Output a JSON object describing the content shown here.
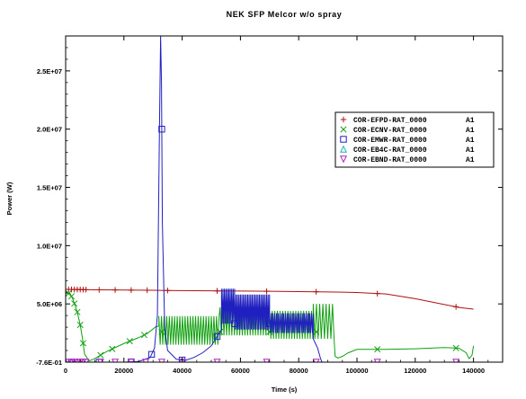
{
  "chart_data": {
    "type": "line",
    "title": "NEK SFP Melcor w/o spray",
    "xlabel": "Time (s)",
    "ylabel": "Power (W)",
    "xlim": [
      0,
      150000
    ],
    "ylim": [
      -0.76,
      28000000
    ],
    "x_ticks": [
      0,
      20000,
      40000,
      60000,
      80000,
      100000,
      120000,
      140000
    ],
    "x_tick_labels": [
      "0",
      "20000",
      "40000",
      "60000",
      "80000",
      "100000",
      "120000",
      "140000"
    ],
    "y_ticks": [
      -0.76,
      5000000,
      10000000,
      15000000,
      20000000,
      25000000
    ],
    "y_tick_labels": [
      "-7.6E-01",
      "5.0E+06",
      "1.0E+07",
      "1.5E+07",
      "2.0E+07",
      "2.5E+07"
    ],
    "grid": false,
    "legend_position": "top-right",
    "series": [
      {
        "name": "COR-EFPD-RAT_0000",
        "suffix": "A1",
        "color": "#b01010",
        "marker": "plus",
        "x": [
          0,
          5000,
          10000,
          20000,
          30000,
          34000,
          50000,
          60000,
          70000,
          80000,
          90000,
          100000,
          110000,
          120000,
          130000,
          135000,
          140000
        ],
        "y": [
          6250000,
          6230000,
          6210000,
          6190000,
          6170000,
          6150000,
          6120000,
          6100000,
          6080000,
          6060000,
          6030000,
          5980000,
          5850000,
          5450000,
          4950000,
          4700000,
          4550000
        ],
        "marker_x": [
          1000,
          2000,
          3000,
          4000,
          5000,
          6000,
          7000,
          11500,
          17000,
          22500,
          28000,
          35000,
          52000,
          69000,
          86000,
          107000,
          134000
        ]
      },
      {
        "name": "COR-ECNV-RAT_0000",
        "suffix": "A1",
        "color": "#10a010",
        "marker": "x",
        "x": [
          0,
          1500,
          2500,
          4000,
          5000,
          5800,
          6500,
          8000,
          10000,
          14000,
          20000,
          25000,
          28000,
          30000,
          31000,
          32000
        ],
        "y": [
          5900000,
          5900000,
          5400000,
          4300000,
          3200000,
          2000000,
          700000,
          100000,
          300000,
          900000,
          1600000,
          2100000,
          2450000,
          2850000,
          3050000,
          3100000
        ],
        "marker_x": [
          1000,
          2000,
          3000,
          4000,
          5000,
          6000,
          12000,
          16000,
          22000,
          27000,
          33000,
          53000,
          70000,
          86000,
          107000,
          134000
        ],
        "oscillation_band": [
          {
            "x0": 32000,
            "x1": 53000,
            "low": 1500000,
            "high": 3950000,
            "period": 900
          },
          {
            "x0": 53000,
            "x1": 70000,
            "low": 2300000,
            "high": 4700000,
            "period": 900
          },
          {
            "x0": 70000,
            "x1": 85000,
            "low": 2000000,
            "high": 4400000,
            "period": 900
          },
          {
            "x0": 85000,
            "x1": 92500,
            "low": 2000000,
            "high": 5000000,
            "period": 1100
          }
        ],
        "tail_x": [
          92500,
          93500,
          95000,
          97000,
          100000,
          110000,
          120000,
          130000,
          135000,
          137500,
          138500,
          139500,
          140000
        ],
        "tail_y": [
          500000,
          350000,
          500000,
          800000,
          1100000,
          1100000,
          1150000,
          1250000,
          1200000,
          800000,
          300000,
          600000,
          1400000
        ]
      },
      {
        "name": "COR-EMWR-RAT_0000",
        "suffix": "A1",
        "color": "#2020c0",
        "marker": "square",
        "x": [
          0,
          10000,
          20000,
          25000,
          29000,
          30500,
          31500,
          32200,
          32600,
          32900,
          33200,
          34000,
          35000,
          38000,
          41000,
          44000,
          47000,
          50000,
          52000,
          53500
        ],
        "y": [
          0,
          0,
          0,
          50000,
          400000,
          1200000,
          4000000,
          20000000,
          28000000,
          24000000,
          12000000,
          3000000,
          1000000,
          250000,
          150000,
          400000,
          800000,
          1400000,
          2200000,
          2800000
        ],
        "marker_x": [
          2000,
          11500,
          22500,
          29500,
          33000,
          40000,
          52000,
          58000,
          70000
        ],
        "oscillation_band": [
          {
            "x0": 53500,
            "x1": 58000,
            "low": 3300000,
            "high": 6300000,
            "period": 500
          },
          {
            "x0": 58000,
            "x1": 70000,
            "low": 2800000,
            "high": 5800000,
            "period": 500
          },
          {
            "x0": 70000,
            "x1": 85000,
            "low": 2500000,
            "high": 4200000,
            "period": 600
          }
        ],
        "tail_x": [
          85000,
          86500,
          87500,
          88000,
          150000
        ],
        "tail_y": [
          2000000,
          1200000,
          300000,
          0,
          0
        ]
      },
      {
        "name": "COR-EB4C-RAT_0000",
        "suffix": "A1",
        "color": "#20b0b0",
        "marker": "triangle-up",
        "x": [
          0,
          150000
        ],
        "y": [
          0,
          0
        ],
        "marker_x": []
      },
      {
        "name": "COR-EBND-RAT_0000",
        "suffix": "A1",
        "color": "#b020c0",
        "marker": "triangle-down",
        "x": [
          0,
          150000
        ],
        "y": [
          0,
          0
        ],
        "marker_x": [
          1000,
          2000,
          3000,
          4000,
          5000,
          6000,
          7000,
          12000,
          17000,
          22500,
          27500,
          33000,
          40000,
          52000,
          69000,
          86000,
          107000,
          134000
        ]
      }
    ]
  }
}
